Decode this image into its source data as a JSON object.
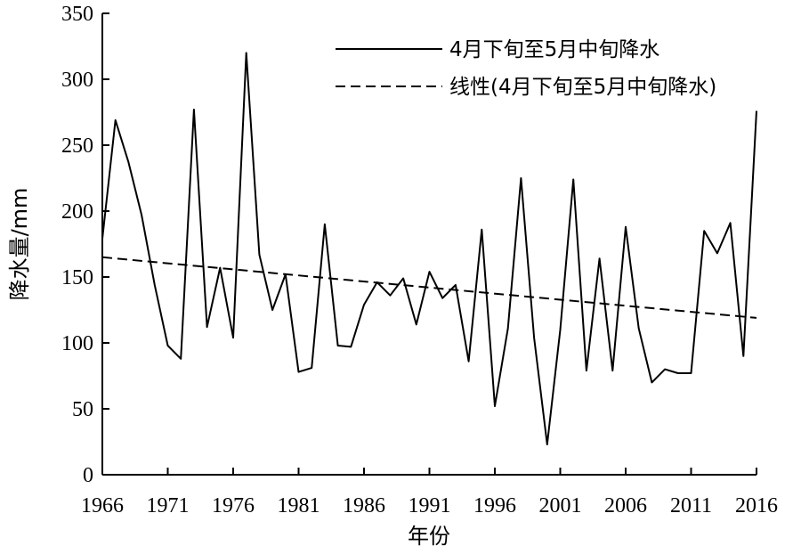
{
  "chart_data": {
    "type": "line",
    "title": "",
    "xlabel": "年份",
    "ylabel": "降水量/mm",
    "xlim": [
      1966,
      2016
    ],
    "ylim": [
      0,
      350
    ],
    "x_ticks": [
      1966,
      1971,
      1976,
      1981,
      1986,
      1991,
      1996,
      2001,
      2006,
      2011,
      2016
    ],
    "y_ticks": [
      0,
      50,
      100,
      150,
      200,
      250,
      300,
      350
    ],
    "grid": false,
    "legend_position": "top-right",
    "colors": {
      "line": "#000000",
      "axis": "#000000",
      "background": "#ffffff"
    },
    "series": [
      {
        "name": "4月下旬至5月中旬降水",
        "style": "solid",
        "x": [
          1966,
          1967,
          1968,
          1969,
          1970,
          1971,
          1972,
          1973,
          1974,
          1975,
          1976,
          1977,
          1978,
          1979,
          1980,
          1981,
          1982,
          1983,
          1984,
          1985,
          1986,
          1987,
          1988,
          1989,
          1990,
          1991,
          1992,
          1993,
          1994,
          1995,
          1996,
          1997,
          1998,
          1999,
          2000,
          2001,
          2002,
          2003,
          2004,
          2005,
          2006,
          2007,
          2008,
          2009,
          2010,
          2011,
          2012,
          2013,
          2014,
          2015,
          2016
        ],
        "y": [
          179,
          269,
          237,
          197,
          144,
          98,
          88,
          277,
          112,
          157,
          104,
          320,
          167,
          125,
          152,
          78,
          81,
          190,
          98,
          97,
          129,
          146,
          136,
          149,
          114,
          154,
          134,
          144,
          86,
          186,
          52,
          111,
          225,
          104,
          23,
          110,
          224,
          79,
          164,
          79,
          188,
          111,
          70,
          80,
          77,
          77,
          185,
          168,
          191,
          90,
          276
        ]
      },
      {
        "name": "线性(4月下旬至5月中旬降水)",
        "style": "dashed",
        "x": [
          1966,
          2016
        ],
        "y": [
          165,
          119
        ]
      }
    ]
  }
}
